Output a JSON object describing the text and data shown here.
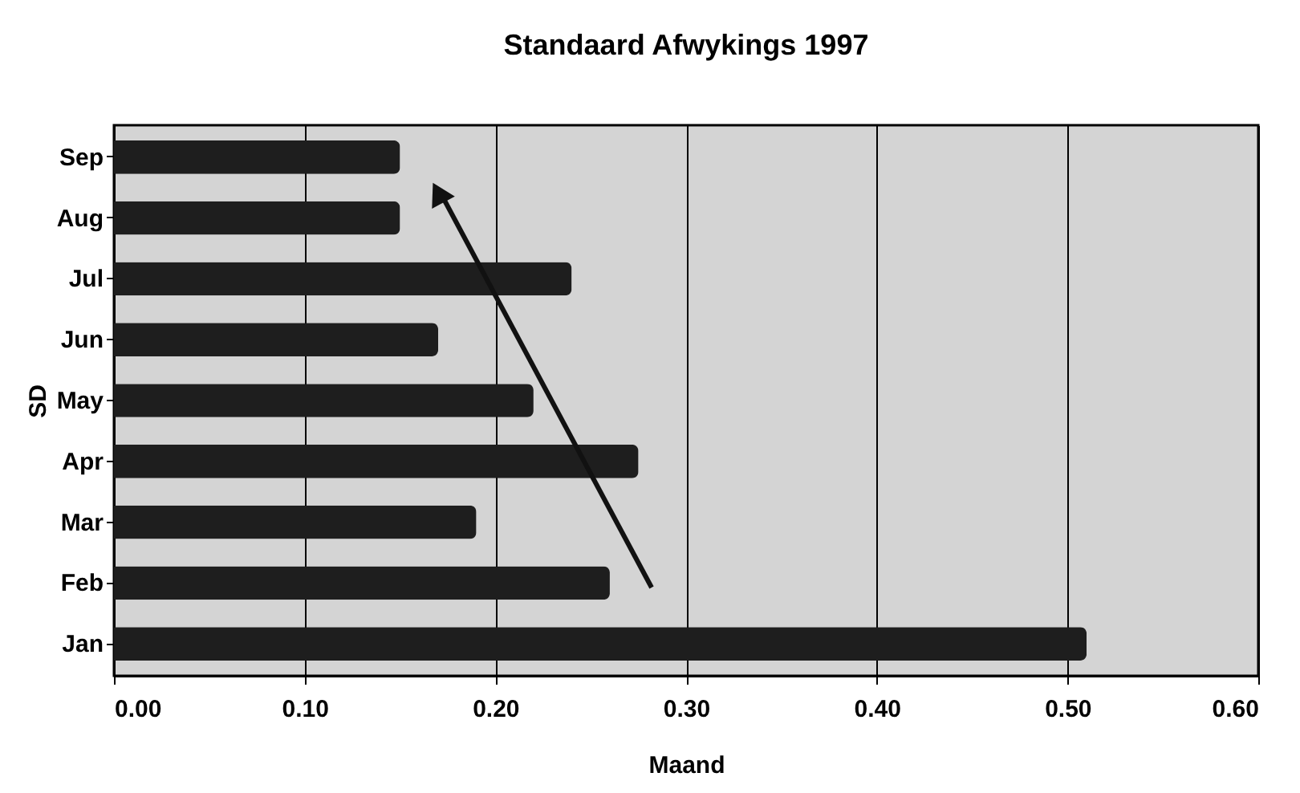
{
  "chart_data": {
    "type": "bar",
    "orientation": "horizontal",
    "title": "Standaard Afwykings 1997",
    "xlabel": "Maand",
    "ylabel": "SD",
    "categories": [
      "Sep",
      "Aug",
      "Jul",
      "Jun",
      "May",
      "Apr",
      "Mar",
      "Feb",
      "Jan"
    ],
    "values": [
      0.15,
      0.15,
      0.24,
      0.17,
      0.22,
      0.275,
      0.19,
      0.26,
      0.51
    ],
    "color": "#1e1e1e",
    "xlim": [
      0,
      0.6
    ],
    "xticks": [
      {
        "value": 0,
        "label": "0.00"
      },
      {
        "value": 0.1,
        "label": "0.10"
      },
      {
        "value": 0.2,
        "label": "0.20"
      },
      {
        "value": 0.3,
        "label": "0.30"
      },
      {
        "value": 0.4,
        "label": "0.40"
      },
      {
        "value": 0.5,
        "label": "0.50"
      },
      {
        "value": 0.6,
        "label": "0.60"
      }
    ],
    "grid": "x"
  }
}
